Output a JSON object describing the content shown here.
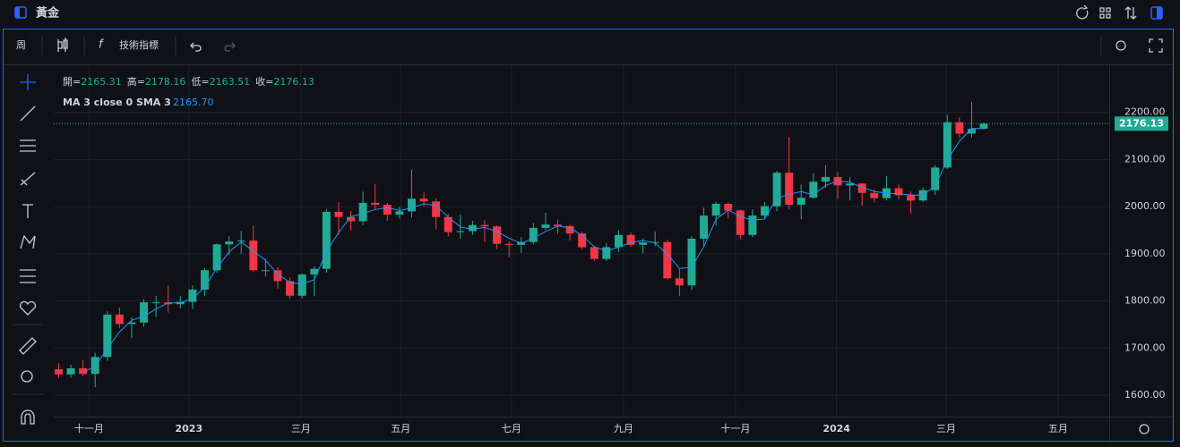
{
  "header": {
    "title": "黃金"
  },
  "toolbar": {
    "interval": "周",
    "indicators": "技術指標"
  },
  "chart_data": {
    "type": "candlestick",
    "ohlc_labels": [
      "開=",
      "高=",
      "低=",
      "收="
    ],
    "ma_label": "MA 3 close 0 SMA 3",
    "ma_readout": "2165.70",
    "up_color": "#22ab94",
    "down_color": "#f23645",
    "ma_color": "#2196f3",
    "grid": true,
    "ylim": [
      1554.5,
      2300
    ],
    "yticks": [
      {
        "value": 1600,
        "label": "1600.00"
      },
      {
        "value": 1700,
        "label": "1700.00"
      },
      {
        "value": 1800,
        "label": "1800.00"
      },
      {
        "value": 1900,
        "label": "1900.00"
      },
      {
        "value": 2000,
        "label": "2000.00"
      },
      {
        "value": 2100,
        "label": "2100.00"
      },
      {
        "value": 2200,
        "label": "2200.00"
      }
    ],
    "xlim": [
      -0.4,
      86.3
    ],
    "xticks": [
      {
        "value": 2.5,
        "label": "十一月"
      },
      {
        "value": 10.7,
        "label": "2023"
      },
      {
        "value": 19.9,
        "label": "三月"
      },
      {
        "value": 28.1,
        "label": "五月"
      },
      {
        "value": 37.2,
        "label": "七月"
      },
      {
        "value": 46.4,
        "label": "九月"
      },
      {
        "value": 55.6,
        "label": "十一月"
      },
      {
        "value": 63.9,
        "label": "2024"
      },
      {
        "value": 72.9,
        "label": "三月"
      },
      {
        "value": 82.1,
        "label": "五月"
      }
    ],
    "candles": [
      [
        1655,
        1668,
        1636,
        1644
      ],
      [
        1644,
        1665,
        1637,
        1657
      ],
      [
        1657,
        1675,
        1640,
        1645
      ],
      [
        1645,
        1690,
        1617,
        1681
      ],
      [
        1681,
        1778,
        1673,
        1771
      ],
      [
        1771,
        1786,
        1742,
        1751
      ],
      [
        1751,
        1765,
        1721,
        1754
      ],
      [
        1754,
        1804,
        1745,
        1797
      ],
      [
        1797,
        1811,
        1766,
        1797
      ],
      [
        1797,
        1833,
        1775,
        1793
      ],
      [
        1793,
        1811,
        1784,
        1798
      ],
      [
        1798,
        1833,
        1783,
        1824
      ],
      [
        1824,
        1870,
        1810,
        1865
      ],
      [
        1865,
        1922,
        1860,
        1920
      ],
      [
        1920,
        1937,
        1897,
        1926
      ],
      [
        1926,
        1949,
        1900,
        1928
      ],
      [
        1928,
        1960,
        1861,
        1865
      ],
      [
        1865,
        1890,
        1852,
        1865
      ],
      [
        1865,
        1872,
        1826,
        1842
      ],
      [
        1842,
        1850,
        1804,
        1811
      ],
      [
        1811,
        1858,
        1805,
        1856
      ],
      [
        1856,
        1873,
        1810,
        1868
      ],
      [
        1868,
        1995,
        1860,
        1989
      ],
      [
        1989,
        2010,
        1940,
        1978
      ],
      [
        1978,
        1991,
        1950,
        1969
      ],
      [
        1969,
        2032,
        1960,
        2008
      ],
      [
        2008,
        2048,
        1993,
        2004
      ],
      [
        2004,
        2008,
        1970,
        1983
      ],
      [
        1983,
        2000,
        1975,
        1990
      ],
      [
        1990,
        2079,
        1977,
        2017
      ],
      [
        2017,
        2030,
        2001,
        2011
      ],
      [
        2011,
        2018,
        1952,
        1978
      ],
      [
        1978,
        1985,
        1937,
        1946
      ],
      [
        1946,
        1983,
        1932,
        1948
      ],
      [
        1948,
        1970,
        1940,
        1961
      ],
      [
        1961,
        1971,
        1925,
        1958
      ],
      [
        1958,
        1960,
        1910,
        1921
      ],
      [
        1921,
        1926,
        1893,
        1919
      ],
      [
        1919,
        1935,
        1902,
        1925
      ],
      [
        1925,
        1965,
        1920,
        1955
      ],
      [
        1955,
        1987,
        1950,
        1962
      ],
      [
        1962,
        1973,
        1942,
        1959
      ],
      [
        1959,
        1962,
        1928,
        1943
      ],
      [
        1943,
        1947,
        1910,
        1914
      ],
      [
        1914,
        1916,
        1884,
        1889
      ],
      [
        1889,
        1923,
        1885,
        1914
      ],
      [
        1914,
        1950,
        1904,
        1940
      ],
      [
        1940,
        1945,
        1915,
        1919
      ],
      [
        1919,
        1933,
        1901,
        1924
      ],
      [
        1924,
        1947,
        1916,
        1925
      ],
      [
        1925,
        1930,
        1846,
        1848
      ],
      [
        1848,
        1869,
        1810,
        1833
      ],
      [
        1833,
        1937,
        1823,
        1932
      ],
      [
        1932,
        1998,
        1915,
        1981
      ],
      [
        1981,
        2010,
        1960,
        2006
      ],
      [
        2006,
        2009,
        1975,
        1992
      ],
      [
        1992,
        1994,
        1931,
        1940
      ],
      [
        1940,
        1994,
        1935,
        1981
      ],
      [
        1981,
        2010,
        1976,
        2001
      ],
      [
        2001,
        2076,
        1990,
        2072
      ],
      [
        2072,
        2148,
        1994,
        2004
      ],
      [
        2004,
        2047,
        1973,
        2019
      ],
      [
        2019,
        2071,
        2017,
        2053
      ],
      [
        2053,
        2088,
        2040,
        2063
      ],
      [
        2063,
        2073,
        2016,
        2045
      ],
      [
        2045,
        2063,
        2013,
        2049
      ],
      [
        2049,
        2050,
        2002,
        2029
      ],
      [
        2029,
        2037,
        2009,
        2018
      ],
      [
        2018,
        2065,
        2013,
        2039
      ],
      [
        2039,
        2047,
        2016,
        2024
      ],
      [
        2024,
        2032,
        1985,
        2013
      ],
      [
        2013,
        2041,
        2010,
        2035
      ],
      [
        2035,
        2088,
        2025,
        2083
      ],
      [
        2083,
        2195,
        2080,
        2179
      ],
      [
        2179,
        2189,
        2146,
        2155
      ],
      [
        2155,
        2222,
        2147,
        2165
      ],
      [
        2165.31,
        2178.16,
        2163.51,
        2176.13
      ]
    ],
    "ma": [
      null,
      null,
      1649,
      1661,
      1699,
      1734,
      1759,
      1767,
      1783,
      1796,
      1796,
      1805,
      1829,
      1870,
      1904,
      1925,
      1906,
      1886,
      1857,
      1839,
      1836,
      1845,
      1904,
      1945,
      1979,
      1985,
      1994,
      1998,
      1992,
      1997,
      2006,
      2002,
      1978,
      1957,
      1952,
      1956,
      1947,
      1933,
      1922,
      1933,
      1947,
      1959,
      1955,
      1939,
      1915,
      1906,
      1914,
      1924,
      1928,
      1923,
      1899,
      1869,
      1871,
      1915,
      1973,
      1993,
      1979,
      1971,
      1974,
      2018,
      2026,
      2032,
      2025,
      2045,
      2054,
      2052,
      2041,
      2032,
      2029,
      2027,
      2025,
      2024,
      2044,
      2099,
      2139,
      2166,
      2165.7
    ]
  }
}
